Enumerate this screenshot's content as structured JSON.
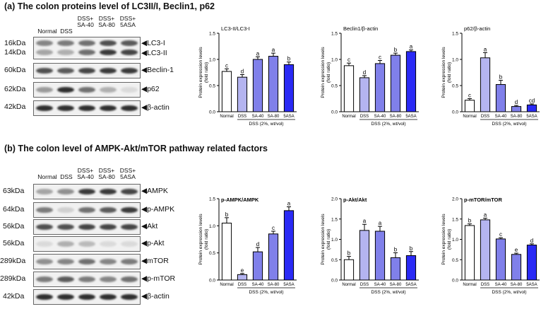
{
  "section_a": {
    "title": "(a) The colon proteins level of LC3II/I, Beclin1, p62",
    "lane_headers": [
      "Normal",
      "DSS",
      "DSS+\nSA-40",
      "DSS+\nSA-80",
      "DSS+\n5ASA"
    ],
    "rows": [
      {
        "kda": "16kDa",
        "label": "◀LC3-I",
        "intensity": [
          0.5,
          0.55,
          0.6,
          0.75,
          0.7
        ]
      },
      {
        "kda": "14kDa",
        "label": "◀LC3-II",
        "intensity": [
          0.35,
          0.3,
          0.6,
          0.85,
          0.8
        ]
      },
      {
        "kda": "60kDa",
        "label": "◀Beclin-1",
        "intensity": [
          0.75,
          0.7,
          0.8,
          0.85,
          0.85
        ]
      },
      {
        "kda": "62kDa",
        "label": "◀p62",
        "intensity": [
          0.4,
          0.9,
          0.6,
          0.3,
          0.1
        ]
      },
      {
        "kda": "42kDa",
        "label": "◀β-actin",
        "intensity": [
          0.9,
          0.9,
          0.9,
          0.9,
          0.9
        ]
      }
    ]
  },
  "section_b": {
    "title": "(b) The colon level of AMPK-Akt/mTOR pathway related factors",
    "lane_headers": [
      "Normal",
      "DSS",
      "DSS+\nSA-40",
      "DSS+\nSA-80",
      "DSS+\n5ASA"
    ],
    "rows": [
      {
        "kda": "63kDa",
        "label": "◀AMPK",
        "intensity": [
          0.35,
          0.45,
          0.85,
          0.85,
          0.8
        ]
      },
      {
        "kda": "64kDa",
        "label": "◀p-AMPK",
        "intensity": [
          0.55,
          0.15,
          0.6,
          0.7,
          0.85
        ]
      },
      {
        "kda": "56kDa",
        "label": "◀Akt",
        "intensity": [
          0.75,
          0.75,
          0.8,
          0.8,
          0.8
        ]
      },
      {
        "kda": "56kDa",
        "label": "◀p-Akt",
        "intensity": [
          0.1,
          0.3,
          0.25,
          0.1,
          0.1
        ]
      },
      {
        "kda": "289kDa",
        "label": "◀mTOR",
        "intensity": [
          0.45,
          0.5,
          0.6,
          0.5,
          0.55
        ]
      },
      {
        "kda": "289kDa",
        "label": "◀p-mTOR",
        "intensity": [
          0.55,
          0.7,
          0.55,
          0.5,
          0.6
        ]
      },
      {
        "kda": "42kDa",
        "label": "◀β-actin",
        "intensity": [
          0.9,
          0.9,
          0.9,
          0.9,
          0.9
        ]
      }
    ]
  },
  "common": {
    "ylabel": "Protein expression levels\n(fold ratio)",
    "xgroup_label": "DSS (2%, wt/vol)",
    "colors": [
      "#ffffff",
      "#b4b4f0",
      "#8080ea",
      "#2a2af5"
    ]
  },
  "chart_data": [
    {
      "type": "bar",
      "title": "LC3-II/LC3-I",
      "categories": [
        "Normal",
        "DSS",
        "SA-40",
        "SA-80",
        "5ASA"
      ],
      "values": [
        0.77,
        0.66,
        1.0,
        1.06,
        0.9
      ],
      "errors": [
        0.05,
        0.05,
        0.05,
        0.06,
        0.05
      ],
      "letters": [
        "c",
        "d",
        "a",
        "a",
        "b"
      ],
      "ylim": [
        0,
        1.5
      ],
      "yticks": [
        "0.0",
        "0.5",
        "1.0",
        "1.5"
      ]
    },
    {
      "type": "bar",
      "title": "Beclin1/β-actin",
      "categories": [
        "Normal",
        "DSS",
        "SA-40",
        "SA-80",
        "5ASA"
      ],
      "values": [
        0.88,
        0.65,
        0.92,
        1.08,
        1.15
      ],
      "errors": [
        0.05,
        0.04,
        0.06,
        0.04,
        0.03
      ],
      "letters": [
        "c",
        "d",
        "c",
        "b",
        "a"
      ],
      "ylim": [
        0,
        1.5
      ],
      "yticks": [
        "0.0",
        "0.5",
        "1.0",
        "1.5"
      ]
    },
    {
      "type": "bar",
      "title": "p62/β-actin",
      "categories": [
        "Normal",
        "DSS",
        "SA-40",
        "SA-80",
        "5ASA"
      ],
      "values": [
        0.22,
        1.03,
        0.52,
        0.1,
        0.13
      ],
      "errors": [
        0.03,
        0.1,
        0.08,
        0.02,
        0.02
      ],
      "letters": [
        "c",
        "a",
        "b",
        "d",
        "cd"
      ],
      "ylim": [
        0,
        1.5
      ],
      "yticks": [
        "0.0",
        "0.5",
        "1.0",
        "1.5"
      ]
    },
    {
      "type": "bar",
      "title": "p-AMPK/AMPK",
      "categories": [
        "Normal",
        "DSS",
        "SA-40",
        "SA-80",
        "5ASA"
      ],
      "values": [
        1.05,
        0.1,
        0.52,
        0.85,
        1.28
      ],
      "errors": [
        0.1,
        0.02,
        0.08,
        0.05,
        0.07
      ],
      "letters": [
        "b",
        "e",
        "d",
        "c",
        "a"
      ],
      "ylim": [
        0,
        1.5
      ],
      "yticks": [
        "0.0",
        "0.5",
        "1.0",
        "1.5"
      ]
    },
    {
      "type": "bar",
      "title": "p-Akt/Akt",
      "categories": [
        "Normal",
        "DSS",
        "SA-40",
        "SA-80",
        "5ASA"
      ],
      "values": [
        0.5,
        1.22,
        1.2,
        0.55,
        0.6
      ],
      "errors": [
        0.08,
        0.15,
        0.12,
        0.12,
        0.1
      ],
      "letters": [
        "b",
        "a",
        "a",
        "b",
        "b"
      ],
      "ylim": [
        0,
        2.0
      ],
      "yticks": [
        "0.0",
        "0.5",
        "1.0",
        "1.5",
        "2.0"
      ]
    },
    {
      "type": "bar",
      "title": "p-mTOR/mTOR",
      "categories": [
        "Normal",
        "DSS",
        "SA-40",
        "SA-80",
        "5ASA"
      ],
      "values": [
        1.34,
        1.48,
        1.01,
        0.63,
        0.86
      ],
      "errors": [
        0.04,
        0.04,
        0.03,
        0.03,
        0.03
      ],
      "letters": [
        "b",
        "a",
        "c",
        "e",
        "d"
      ],
      "ylim": [
        0,
        2.0
      ],
      "yticks": [
        "0.0",
        "0.5",
        "1.0",
        "1.5",
        "2.0"
      ]
    }
  ]
}
